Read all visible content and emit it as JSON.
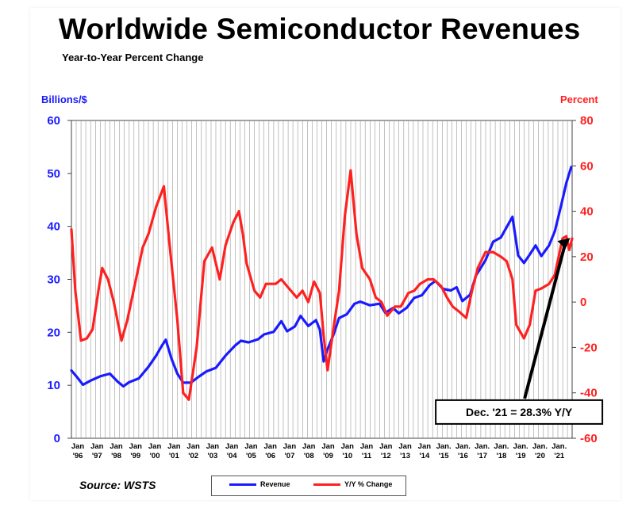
{
  "header": {
    "title": "Worldwide Semiconductor Revenues",
    "subtitle": "Year-to-Year Percent Change"
  },
  "source": "Source: WSTS",
  "chart_data": {
    "type": "line",
    "title": "Worldwide Semiconductor Revenues",
    "subtitle": "Year-to-Year Percent Change",
    "left_axis": {
      "label": "Billions/$",
      "range": [
        0,
        60
      ],
      "ticks": [
        0,
        10,
        20,
        30,
        40,
        50,
        60
      ],
      "color": "#1a1aff"
    },
    "right_axis": {
      "label": "Percent",
      "range": [
        -60,
        80
      ],
      "ticks": [
        -60,
        -40,
        -20,
        0,
        20,
        40,
        60,
        80
      ],
      "color": "#ff2020"
    },
    "x_range": [
      1996,
      2022
    ],
    "x_ticks": [
      {
        "line1": "Jan",
        "line2": "'96"
      },
      {
        "line1": "Jan",
        "line2": "'97"
      },
      {
        "line1": "Jan",
        "line2": "'98"
      },
      {
        "line1": "Jan",
        "line2": "'99"
      },
      {
        "line1": "Jan",
        "line2": "'00"
      },
      {
        "line1": "Jan",
        "line2": "'01"
      },
      {
        "line1": "Jan",
        "line2": "'02"
      },
      {
        "line1": "Jan",
        "line2": "'03"
      },
      {
        "line1": "Jan",
        "line2": "'04"
      },
      {
        "line1": "Jan",
        "line2": "'05"
      },
      {
        "line1": "Jan",
        "line2": "'06"
      },
      {
        "line1": "Jan",
        "line2": "'07"
      },
      {
        "line1": "Jan",
        "line2": "'08"
      },
      {
        "line1": "Jan",
        "line2": "'09"
      },
      {
        "line1": "Jan",
        "line2": "'10"
      },
      {
        "line1": "Jan",
        "line2": "'11"
      },
      {
        "line1": "Jan",
        "line2": "'12"
      },
      {
        "line1": "Jan",
        "line2": "'13"
      },
      {
        "line1": "Jan",
        "line2": "'14"
      },
      {
        "line1": "Jan.",
        "line2": "'15"
      },
      {
        "line1": "Jan.",
        "line2": "'16"
      },
      {
        "line1": "Jan.",
        "line2": "'17"
      },
      {
        "line1": "Jan.",
        "line2": "'18"
      },
      {
        "line1": "Jan.",
        "line2": "'19"
      },
      {
        "line1": "Jan.",
        "line2": "'20"
      },
      {
        "line1": "Jan.",
        "line2": "'21"
      }
    ],
    "grid": "vertical",
    "series": [
      {
        "name": "Revenue",
        "axis": "left",
        "color": "#1a1aff",
        "points": [
          [
            1996.0,
            12.8
          ],
          [
            1996.3,
            11.5
          ],
          [
            1996.6,
            10.1
          ],
          [
            1997.0,
            10.9
          ],
          [
            1997.5,
            11.7
          ],
          [
            1998.0,
            12.2
          ],
          [
            1998.4,
            10.7
          ],
          [
            1998.7,
            9.8
          ],
          [
            1999.0,
            10.6
          ],
          [
            1999.5,
            11.3
          ],
          [
            2000.0,
            13.5
          ],
          [
            2000.4,
            15.6
          ],
          [
            2000.7,
            17.5
          ],
          [
            2000.9,
            18.6
          ],
          [
            2001.2,
            15.0
          ],
          [
            2001.5,
            12.2
          ],
          [
            2001.8,
            10.5
          ],
          [
            2002.2,
            10.5
          ],
          [
            2002.6,
            11.6
          ],
          [
            2003.0,
            12.6
          ],
          [
            2003.5,
            13.3
          ],
          [
            2004.0,
            15.6
          ],
          [
            2004.5,
            17.5
          ],
          [
            2004.8,
            18.4
          ],
          [
            2005.2,
            18.1
          ],
          [
            2005.7,
            18.7
          ],
          [
            2006.0,
            19.6
          ],
          [
            2006.5,
            20.1
          ],
          [
            2006.9,
            22.1
          ],
          [
            2007.2,
            20.2
          ],
          [
            2007.6,
            21.1
          ],
          [
            2007.9,
            23.1
          ],
          [
            2008.3,
            21.2
          ],
          [
            2008.7,
            22.3
          ],
          [
            2008.9,
            20.5
          ],
          [
            2009.1,
            14.5
          ],
          [
            2009.3,
            16.8
          ],
          [
            2009.6,
            19.5
          ],
          [
            2009.9,
            22.7
          ],
          [
            2010.3,
            23.4
          ],
          [
            2010.7,
            25.4
          ],
          [
            2011.0,
            25.8
          ],
          [
            2011.5,
            25.1
          ],
          [
            2012.0,
            25.4
          ],
          [
            2012.3,
            23.7
          ],
          [
            2012.7,
            24.6
          ],
          [
            2013.0,
            23.6
          ],
          [
            2013.4,
            24.6
          ],
          [
            2013.8,
            26.5
          ],
          [
            2014.2,
            27.0
          ],
          [
            2014.6,
            28.9
          ],
          [
            2014.9,
            29.7
          ],
          [
            2015.3,
            28.2
          ],
          [
            2015.7,
            27.9
          ],
          [
            2016.0,
            28.5
          ],
          [
            2016.3,
            25.9
          ],
          [
            2016.7,
            27.1
          ],
          [
            2017.0,
            30.7
          ],
          [
            2017.5,
            33.6
          ],
          [
            2017.9,
            37.1
          ],
          [
            2018.3,
            37.9
          ],
          [
            2018.7,
            40.5
          ],
          [
            2018.9,
            41.8
          ],
          [
            2019.2,
            34.5
          ],
          [
            2019.5,
            33.1
          ],
          [
            2019.8,
            34.7
          ],
          [
            2020.1,
            36.4
          ],
          [
            2020.4,
            34.4
          ],
          [
            2020.8,
            36.4
          ],
          [
            2021.1,
            39.1
          ],
          [
            2021.4,
            43.5
          ],
          [
            2021.7,
            48.2
          ],
          [
            2021.95,
            51.2
          ]
        ]
      },
      {
        "name": "Y/Y % Change",
        "axis": "right",
        "color": "#ff2020",
        "points": [
          [
            1996.0,
            32
          ],
          [
            1996.2,
            5
          ],
          [
            1996.5,
            -17
          ],
          [
            1996.8,
            -16
          ],
          [
            1997.1,
            -12
          ],
          [
            1997.4,
            5
          ],
          [
            1997.6,
            15
          ],
          [
            1997.9,
            10
          ],
          [
            1998.2,
            0
          ],
          [
            1998.6,
            -17
          ],
          [
            1998.9,
            -8
          ],
          [
            1999.3,
            8
          ],
          [
            1999.7,
            24
          ],
          [
            2000.0,
            30
          ],
          [
            2000.4,
            42
          ],
          [
            2000.8,
            51
          ],
          [
            2001.1,
            25
          ],
          [
            2001.5,
            -8
          ],
          [
            2001.8,
            -40
          ],
          [
            2002.1,
            -43
          ],
          [
            2002.5,
            -20
          ],
          [
            2002.9,
            18
          ],
          [
            2003.3,
            24
          ],
          [
            2003.7,
            10
          ],
          [
            2004.0,
            25
          ],
          [
            2004.4,
            35
          ],
          [
            2004.7,
            40
          ],
          [
            2004.9,
            30
          ],
          [
            2005.1,
            17
          ],
          [
            2005.5,
            5
          ],
          [
            2005.8,
            2
          ],
          [
            2006.1,
            8
          ],
          [
            2006.6,
            8
          ],
          [
            2006.9,
            10
          ],
          [
            2007.3,
            6
          ],
          [
            2007.7,
            2
          ],
          [
            2008.0,
            5
          ],
          [
            2008.3,
            0
          ],
          [
            2008.6,
            9
          ],
          [
            2008.9,
            4
          ],
          [
            2009.1,
            -15
          ],
          [
            2009.3,
            -30
          ],
          [
            2009.6,
            -12
          ],
          [
            2009.9,
            5
          ],
          [
            2010.2,
            38
          ],
          [
            2010.5,
            58
          ],
          [
            2010.8,
            30
          ],
          [
            2011.1,
            15
          ],
          [
            2011.5,
            10
          ],
          [
            2011.8,
            2
          ],
          [
            2012.1,
            0
          ],
          [
            2012.4,
            -6
          ],
          [
            2012.8,
            -2
          ],
          [
            2013.1,
            -2
          ],
          [
            2013.5,
            4
          ],
          [
            2013.8,
            5
          ],
          [
            2014.1,
            8
          ],
          [
            2014.5,
            10
          ],
          [
            2014.8,
            10
          ],
          [
            2015.2,
            7
          ],
          [
            2015.5,
            2
          ],
          [
            2015.8,
            -2
          ],
          [
            2016.1,
            -4
          ],
          [
            2016.5,
            -7
          ],
          [
            2016.8,
            5
          ],
          [
            2017.1,
            15
          ],
          [
            2017.5,
            22
          ],
          [
            2017.9,
            22
          ],
          [
            2018.3,
            20
          ],
          [
            2018.6,
            18
          ],
          [
            2018.9,
            10
          ],
          [
            2019.1,
            -10
          ],
          [
            2019.5,
            -16
          ],
          [
            2019.8,
            -10
          ],
          [
            2020.1,
            5
          ],
          [
            2020.4,
            6
          ],
          [
            2020.8,
            8
          ],
          [
            2021.1,
            12
          ],
          [
            2021.3,
            20
          ],
          [
            2021.5,
            28
          ],
          [
            2021.7,
            29
          ],
          [
            2021.85,
            23
          ],
          [
            2022.0,
            28
          ]
        ]
      }
    ],
    "annotation": {
      "text": "Dec. '21 = 28.3% Y/Y",
      "x": 2021.9,
      "y_right": 28.3,
      "box_x": 2015.0,
      "box_y_right": -46
    }
  },
  "legend": {
    "items": [
      {
        "label": "Revenue",
        "color": "#1a1aff"
      },
      {
        "label": "Y/Y % Change",
        "color": "#ff2020"
      }
    ]
  }
}
